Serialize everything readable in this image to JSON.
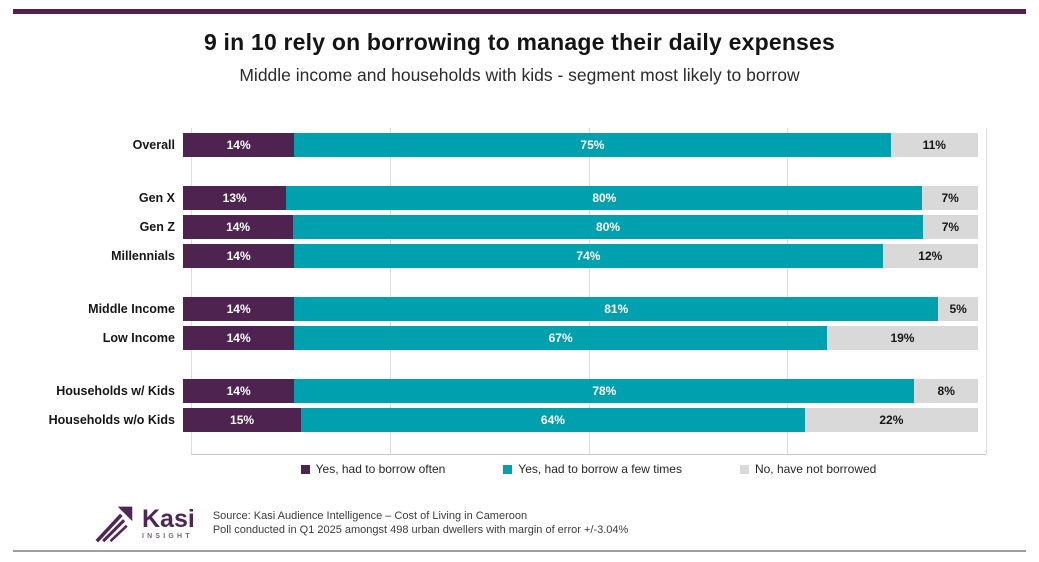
{
  "accent": {
    "top_bar_color": "#4E2350",
    "bottom_line_color": "#9E9E9E"
  },
  "header": {
    "title": "9 in 10 rely on borrowing to manage their daily expenses",
    "subtitle": "Middle income and households with kids - segment most likely to borrow"
  },
  "chart_data": {
    "type": "bar",
    "orientation": "horizontal",
    "stacked": true,
    "value_suffix": "%",
    "xlim": [
      0,
      100
    ],
    "gridlines_percent": [
      0,
      25,
      50,
      75,
      100
    ],
    "grid_color": "#DCDCDC",
    "legend_position": "bottom",
    "series_names": [
      "Yes, had to borrow often",
      "Yes, had to borrow a few times",
      "No, have not borrowed"
    ],
    "series_colors": [
      "#4E2350",
      "#00A0AE",
      "#D9D9D9"
    ],
    "series_label_colors": [
      "#FFFFFF",
      "#FFFFFF",
      "#161616"
    ],
    "groups": [
      {
        "rows": [
          {
            "category": "Overall",
            "values": [
              14,
              75,
              11
            ]
          }
        ]
      },
      {
        "rows": [
          {
            "category": "Gen X",
            "values": [
              13,
              80,
              7
            ]
          },
          {
            "category": "Gen Z",
            "values": [
              14,
              80,
              7
            ]
          },
          {
            "category": "Millennials",
            "values": [
              14,
              74,
              12
            ]
          }
        ]
      },
      {
        "rows": [
          {
            "category": "Middle Income",
            "values": [
              14,
              81,
              5
            ]
          },
          {
            "category": "Low Income",
            "values": [
              14,
              67,
              19
            ]
          }
        ]
      },
      {
        "rows": [
          {
            "category": "Households w/ Kids",
            "values": [
              14,
              78,
              8
            ]
          },
          {
            "category": "Households w/o Kids",
            "values": [
              15,
              64,
              22
            ]
          }
        ]
      }
    ]
  },
  "footer": {
    "logo_name": "Kasi",
    "logo_subtext": "INSIGHT",
    "logo_color": "#4F2656",
    "source_line1": "Source: Kasi Audience Intelligence – Cost of Living in Cameroon",
    "source_line2": "Poll conducted in Q1 2025 amongst 498 urban dwellers with margin of error +/-3.04%"
  }
}
